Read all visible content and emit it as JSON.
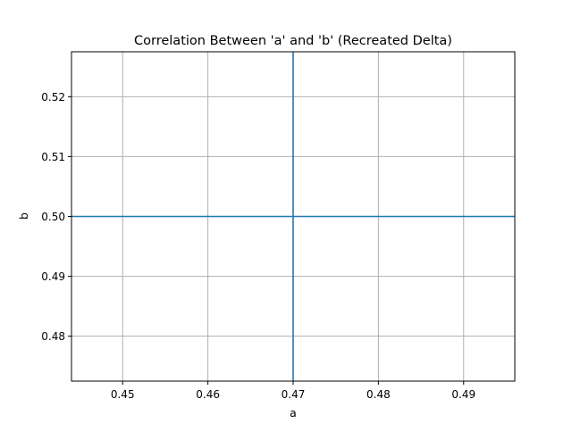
{
  "chart_data": {
    "type": "line",
    "title": "Correlation Between 'a' and 'b' (Recreated Delta)",
    "xlabel": "a",
    "ylabel": "b",
    "xlim": [
      0.444,
      0.496
    ],
    "ylim": [
      0.4725,
      0.5275
    ],
    "xticks": [
      0.45,
      0.46,
      0.47,
      0.48,
      0.49
    ],
    "xtick_labels": [
      "0.45",
      "0.46",
      "0.47",
      "0.48",
      "0.49"
    ],
    "yticks": [
      0.48,
      0.49,
      0.5,
      0.51,
      0.52
    ],
    "ytick_labels": [
      "0.48",
      "0.49",
      "0.50",
      "0.51",
      "0.52"
    ],
    "grid": true,
    "reference_lines": [
      {
        "orientation": "vertical",
        "value": 0.47
      },
      {
        "orientation": "horizontal",
        "value": 0.5
      }
    ],
    "colors": {
      "line": "#1f77b4",
      "grid": "#b0b0b0",
      "axes": "#000000"
    }
  }
}
